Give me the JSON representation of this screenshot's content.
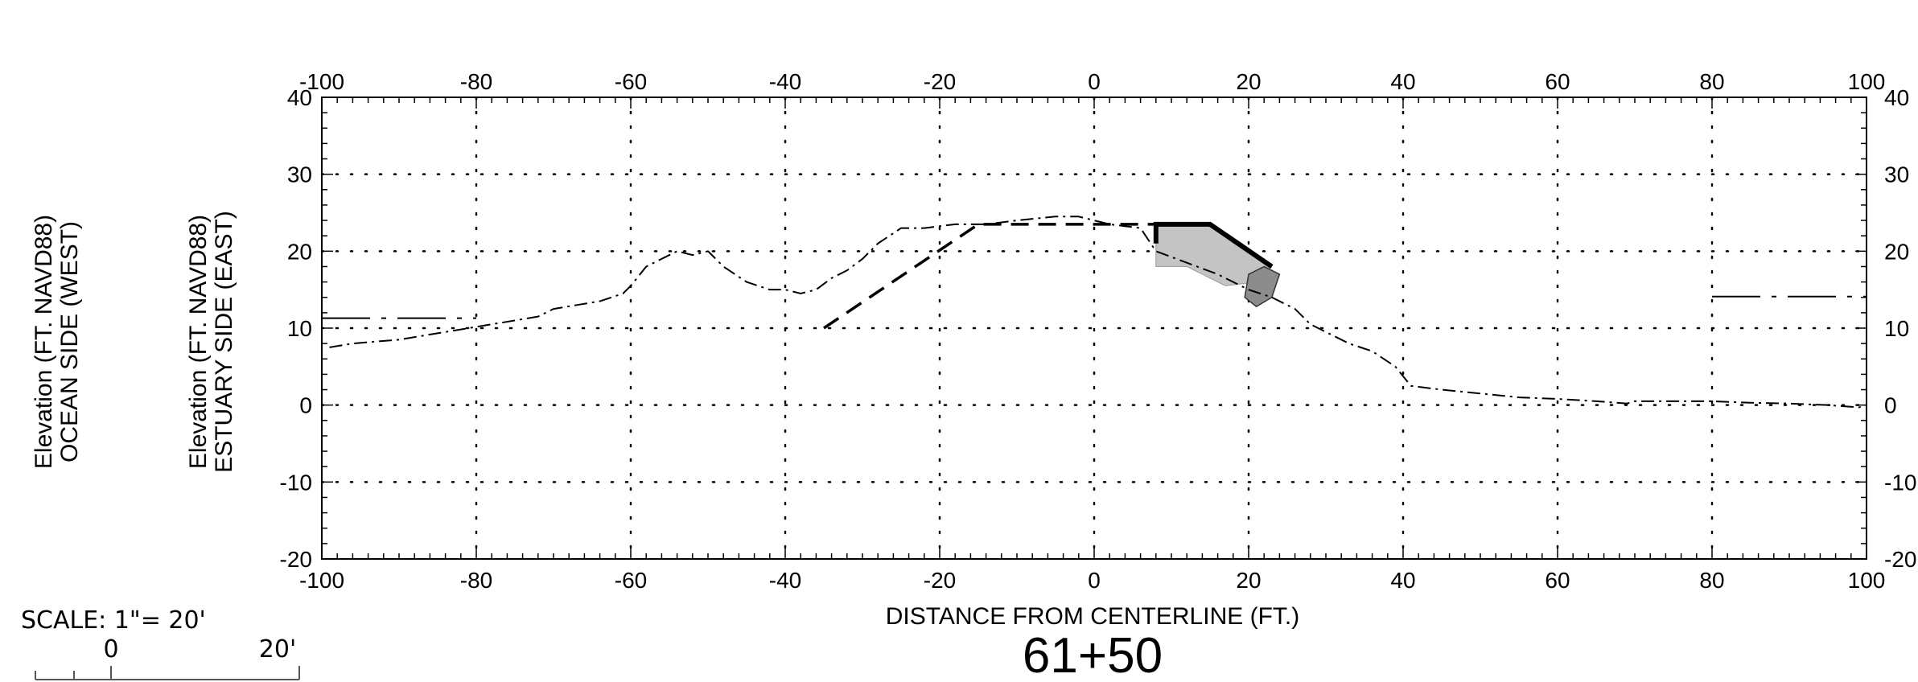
{
  "chart_data": {
    "type": "line",
    "xlabel": "DISTANCE FROM CENTERLINE (FT.)",
    "ylabel_left_1": "Elevation (FT. NAVD88)",
    "ylabel_left_2": "OCEAN SIDE (WEST)",
    "ylabel_right_1": "Elevation (FT. NAVD88)",
    "ylabel_right_2": "ESTUARY SIDE (EAST)",
    "station": "61+50",
    "xlim": [
      -100,
      100
    ],
    "ylim": [
      -20,
      40
    ],
    "x_ticks": [
      -100,
      -80,
      -60,
      -40,
      -20,
      0,
      20,
      40,
      60,
      80,
      100
    ],
    "y_ticks": [
      -20,
      -10,
      0,
      10,
      20,
      30,
      40
    ],
    "x_tick_labels": [
      "-100",
      "-80",
      "-60",
      "-40",
      "-20",
      "0",
      "20",
      "40",
      "60",
      "80",
      "100"
    ],
    "y_tick_labels_left": [
      "-20",
      "-10",
      "0",
      "10",
      "20",
      "30",
      "40"
    ],
    "y_tick_labels_right": [
      "-20",
      "-10",
      "0",
      "10",
      "20",
      "30",
      "40"
    ],
    "grid": true,
    "series": [
      {
        "style": "dash-dot",
        "x": [
          -99,
          -96,
          -90,
          -84,
          -78,
          -72,
          -70,
          -67,
          -64,
          -61,
          -60,
          -58,
          -56,
          -54,
          -52,
          -50,
          -48,
          -45,
          -42,
          -40,
          -38,
          -36,
          -34,
          -32,
          -30,
          -28,
          -25,
          -22,
          -18,
          -14,
          -10,
          -5,
          -2,
          0,
          2,
          6,
          8,
          12,
          16,
          20,
          23,
          26,
          28,
          30,
          33,
          36,
          39,
          41,
          45,
          50,
          55,
          60,
          65,
          69,
          70,
          75,
          80,
          85,
          90,
          95,
          99,
          100
        ],
        "y": [
          7.5,
          8,
          8.5,
          9.5,
          10.5,
          11.5,
          12.5,
          13,
          13.5,
          14.5,
          15.5,
          18,
          19,
          20,
          19.5,
          20,
          18,
          16,
          15,
          15,
          14.5,
          15,
          16.5,
          17.5,
          19,
          21,
          23,
          23,
          23.5,
          23.5,
          24,
          24.5,
          24.5,
          24,
          23.5,
          23,
          20,
          18.5,
          17,
          15,
          14,
          12.5,
          10.5,
          9.5,
          8,
          7,
          5,
          2.5,
          2,
          1.5,
          1,
          0.8,
          0.5,
          0.2,
          0.5,
          0.5,
          0.5,
          0.3,
          0.2,
          0,
          -0.3,
          0
        ]
      },
      {
        "style": "dashed",
        "x": [
          -35,
          -15,
          8
        ],
        "y": [
          10,
          23.5,
          23.5
        ]
      },
      {
        "style": "dash-dot-level",
        "x": [
          -100,
          -80
        ],
        "y": [
          11.3,
          11.3
        ]
      },
      {
        "style": "dash-dot-level",
        "x": [
          80,
          100
        ],
        "y": [
          14.1,
          14.1
        ]
      }
    ],
    "structure": {
      "crest_outline_x": [
        8,
        8,
        15,
        23
      ],
      "crest_outline_y": [
        21,
        23.5,
        23.5,
        18
      ],
      "fill_light_x": [
        8,
        8,
        15,
        23,
        21,
        17,
        12,
        12,
        8
      ],
      "fill_light_y": [
        18,
        23.5,
        23.5,
        18,
        16,
        15.5,
        18,
        18,
        18
      ],
      "fill_dark_x": [
        20,
        22,
        24,
        23,
        21,
        19.5
      ],
      "fill_dark_y": [
        17,
        18,
        17,
        14,
        12.8,
        14
      ]
    }
  },
  "scale": {
    "label": "SCALE: 1\"= 20'",
    "zero_label": "0",
    "end_label": "20'"
  }
}
